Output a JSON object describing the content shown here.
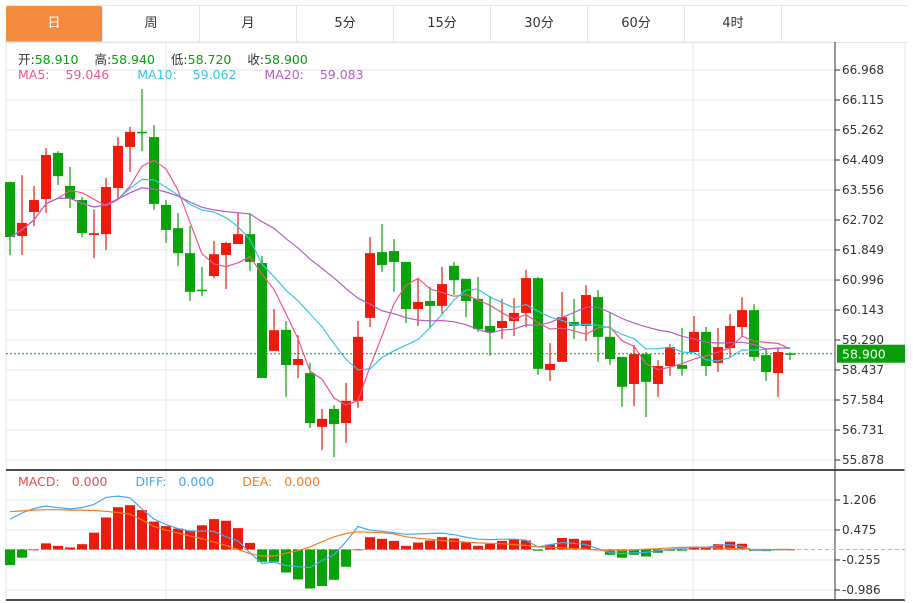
{
  "tabs": [
    {
      "label": "日",
      "active": true
    },
    {
      "label": "周"
    },
    {
      "label": "月"
    },
    {
      "label": "5分"
    },
    {
      "label": "15分"
    },
    {
      "label": "30分"
    },
    {
      "label": "60分"
    },
    {
      "label": "4时"
    }
  ],
  "ohlc": {
    "open_label": "开:",
    "open": "58.910",
    "high_label": "高:",
    "high": "58.940",
    "low_label": "低:",
    "low": "58.720",
    "close_label": "收:",
    "close": "58.900"
  },
  "ma": {
    "ma5_label": "MA5:",
    "ma5": "59.046",
    "ma10_label": "MA10:",
    "ma10": "59.062",
    "ma20_label": "MA20:",
    "ma20": "59.083"
  },
  "macd_info": {
    "macd_label": "MACD:",
    "macd": "0.000",
    "diff_label": "DIFF:",
    "diff": "0.000",
    "dea_label": "DEA:",
    "dea": "0.000"
  },
  "current_price": "58.900",
  "colors": {
    "up": "#f01a0a",
    "down": "#07a307",
    "ma5": "#f0568a",
    "ma10": "#36c7e0",
    "ma20": "#b85cc8",
    "diff": "#4aa6f0",
    "dea": "#f57d1f",
    "tab_active": "#f58b3e",
    "price_badge": "#0a9e0a"
  },
  "chart_data": [
    {
      "type": "candlestick",
      "price_axis_ticks": [
        "66.968",
        "66.115",
        "65.262",
        "64.409",
        "63.556",
        "62.702",
        "61.849",
        "60.996",
        "60.143",
        "59.290",
        "58.437",
        "57.584",
        "56.731",
        "55.878"
      ],
      "ylim": [
        55.878,
        66.968
      ],
      "candles": [
        [
          63.78,
          62.22,
          63.8,
          61.7
        ],
        [
          62.25,
          62.62,
          63.98,
          61.71
        ],
        [
          62.93,
          63.27,
          63.67,
          62.53
        ],
        [
          63.3,
          64.55,
          64.75,
          62.9
        ],
        [
          64.61,
          63.95,
          64.66,
          63.7
        ],
        [
          63.67,
          63.3,
          64.21,
          63.04
        ],
        [
          63.27,
          62.33,
          63.36,
          62.22
        ],
        [
          62.28,
          62.33,
          63.0,
          61.62
        ],
        [
          62.3,
          63.64,
          63.9,
          61.85
        ],
        [
          63.61,
          64.81,
          65.06,
          63.3
        ],
        [
          64.78,
          65.21,
          65.35,
          64.07
        ],
        [
          65.21,
          65.18,
          66.43,
          64.66
        ],
        [
          65.06,
          63.16,
          65.4,
          62.99
        ],
        [
          63.13,
          62.42,
          63.27,
          62.05
        ],
        [
          62.47,
          61.76,
          62.9,
          61.4
        ],
        [
          61.76,
          60.66,
          62.53,
          60.4
        ],
        [
          60.72,
          60.69,
          61.37,
          60.54
        ],
        [
          61.11,
          61.73,
          62.11,
          61.05
        ],
        [
          61.71,
          62.05,
          62.08,
          60.74
        ],
        [
          62.02,
          62.3,
          62.9,
          62.02
        ],
        [
          62.3,
          61.51,
          62.9,
          61.25
        ],
        [
          61.48,
          58.21,
          61.68,
          58.21
        ],
        [
          58.98,
          59.57,
          60.17,
          58.98
        ],
        [
          59.58,
          58.58,
          59.83,
          57.67
        ],
        [
          58.58,
          58.75,
          59.43,
          58.21
        ],
        [
          58.35,
          56.93,
          58.64,
          56.79
        ],
        [
          56.82,
          57.05,
          57.33,
          56.16
        ],
        [
          57.33,
          56.9,
          57.44,
          55.96
        ],
        [
          56.93,
          57.56,
          58.07,
          56.36
        ],
        [
          57.56,
          59.38,
          59.83,
          57.36
        ],
        [
          59.92,
          61.76,
          62.22,
          59.66
        ],
        [
          61.79,
          61.42,
          62.59,
          61.22
        ],
        [
          61.82,
          61.51,
          62.16,
          60.66
        ],
        [
          61.51,
          60.17,
          61.51,
          59.77
        ],
        [
          60.17,
          60.37,
          61.05,
          59.69
        ],
        [
          60.4,
          60.26,
          60.8,
          59.63
        ],
        [
          60.26,
          60.88,
          61.37,
          60.03
        ],
        [
          61.4,
          60.99,
          61.51,
          60.57
        ],
        [
          61.03,
          60.4,
          61.03,
          59.94
        ],
        [
          60.46,
          59.6,
          61.08,
          59.52
        ],
        [
          59.69,
          59.52,
          60.54,
          58.84
        ],
        [
          59.63,
          59.83,
          60.46,
          59.32
        ],
        [
          59.83,
          60.06,
          60.48,
          59.4
        ],
        [
          60.06,
          61.05,
          61.28,
          59.66
        ],
        [
          61.05,
          58.47,
          61.08,
          58.3
        ],
        [
          58.44,
          58.61,
          59.2,
          58.13
        ],
        [
          58.67,
          59.94,
          60.66,
          58.67
        ],
        [
          59.8,
          59.69,
          60.46,
          59.32
        ],
        [
          59.69,
          60.57,
          60.85,
          59.26
        ],
        [
          60.51,
          59.38,
          60.71,
          58.67
        ],
        [
          59.38,
          58.75,
          60.08,
          58.58
        ],
        [
          58.81,
          57.96,
          58.81,
          57.39
        ],
        [
          58.04,
          58.89,
          59.15,
          57.41
        ],
        [
          58.89,
          58.1,
          58.95,
          57.1
        ],
        [
          58.04,
          58.55,
          58.72,
          57.67
        ],
        [
          58.55,
          59.09,
          59.18,
          58.27
        ],
        [
          58.58,
          58.47,
          59.63,
          58.27
        ],
        [
          58.95,
          59.52,
          59.97,
          58.95
        ],
        [
          59.52,
          58.55,
          59.66,
          58.27
        ],
        [
          58.64,
          59.09,
          59.63,
          58.38
        ],
        [
          59.06,
          59.69,
          60.03,
          58.81
        ],
        [
          59.66,
          60.14,
          60.51,
          59.4
        ],
        [
          60.14,
          58.81,
          60.31,
          58.69
        ],
        [
          58.86,
          58.38,
          59.06,
          58.13
        ],
        [
          58.35,
          58.95,
          59.06,
          57.67
        ],
        [
          58.91,
          58.9,
          58.94,
          58.72
        ]
      ],
      "candle_fields": [
        "open",
        "close",
        "high",
        "low"
      ],
      "moving_averages": [
        5,
        10,
        20
      ]
    },
    {
      "type": "bar+line",
      "macd_axis_ticks": [
        "1.206",
        "0.475",
        "-0.255",
        "-0.986"
      ],
      "ylim": [
        -1.1,
        1.5
      ],
      "macd": [
        -0.38,
        -0.2,
        0.0,
        0.15,
        0.09,
        0.05,
        0.13,
        0.41,
        0.78,
        1.03,
        1.08,
        0.96,
        0.68,
        0.57,
        0.51,
        0.46,
        0.59,
        0.74,
        0.7,
        0.52,
        0.16,
        -0.3,
        -0.3,
        -0.56,
        -0.73,
        -0.95,
        -0.89,
        -0.74,
        -0.42,
        0.0,
        0.3,
        0.26,
        0.21,
        0.09,
        0.17,
        0.22,
        0.3,
        0.27,
        0.17,
        0.09,
        0.14,
        0.21,
        0.25,
        0.22,
        -0.03,
        0.12,
        0.28,
        0.26,
        0.22,
        0.0,
        -0.13,
        -0.2,
        -0.13,
        -0.17,
        -0.08,
        -0.03,
        -0.03,
        0.07,
        0.04,
        0.13,
        0.19,
        0.14,
        -0.03,
        -0.04,
        -0.01,
        0.0
      ],
      "diff": [
        0.74,
        0.89,
        1.0,
        1.06,
        1.02,
        0.99,
        1.02,
        1.1,
        1.27,
        1.3,
        1.26,
        0.99,
        0.74,
        0.61,
        0.51,
        0.45,
        0.45,
        0.44,
        0.31,
        0.21,
        -0.08,
        -0.34,
        -0.31,
        -0.39,
        -0.42,
        -0.44,
        -0.27,
        -0.13,
        0.19,
        0.56,
        0.47,
        0.44,
        0.41,
        0.37,
        0.38,
        0.39,
        0.4,
        0.36,
        0.3,
        0.25,
        0.24,
        0.25,
        0.25,
        0.23,
        0.06,
        0.12,
        0.17,
        0.15,
        0.12,
        0.02,
        -0.08,
        -0.1,
        -0.08,
        -0.07,
        -0.03,
        0.0,
        0.02,
        0.06,
        0.05,
        0.1,
        0.12,
        0.07,
        -0.02,
        -0.02,
        0.0,
        0.0
      ],
      "dea": [
        0.92,
        0.94,
        0.96,
        0.97,
        0.97,
        0.96,
        0.96,
        0.95,
        0.93,
        0.9,
        0.86,
        0.72,
        0.56,
        0.47,
        0.4,
        0.33,
        0.26,
        0.18,
        0.1,
        0.0,
        -0.1,
        -0.16,
        -0.16,
        -0.09,
        -0.03,
        0.06,
        0.19,
        0.31,
        0.39,
        0.43,
        0.42,
        0.41,
        0.38,
        0.31,
        0.27,
        0.25,
        0.22,
        0.2,
        0.18,
        0.16,
        0.15,
        0.14,
        0.12,
        0.1,
        0.06,
        0.05,
        0.04,
        0.02,
        0.01,
        -0.01,
        -0.03,
        -0.03,
        -0.01,
        0.01,
        0.02,
        0.04,
        0.05,
        0.05,
        0.05,
        0.04,
        0.03,
        0.02,
        0.0,
        0.0,
        0.0,
        0.0
      ]
    }
  ]
}
